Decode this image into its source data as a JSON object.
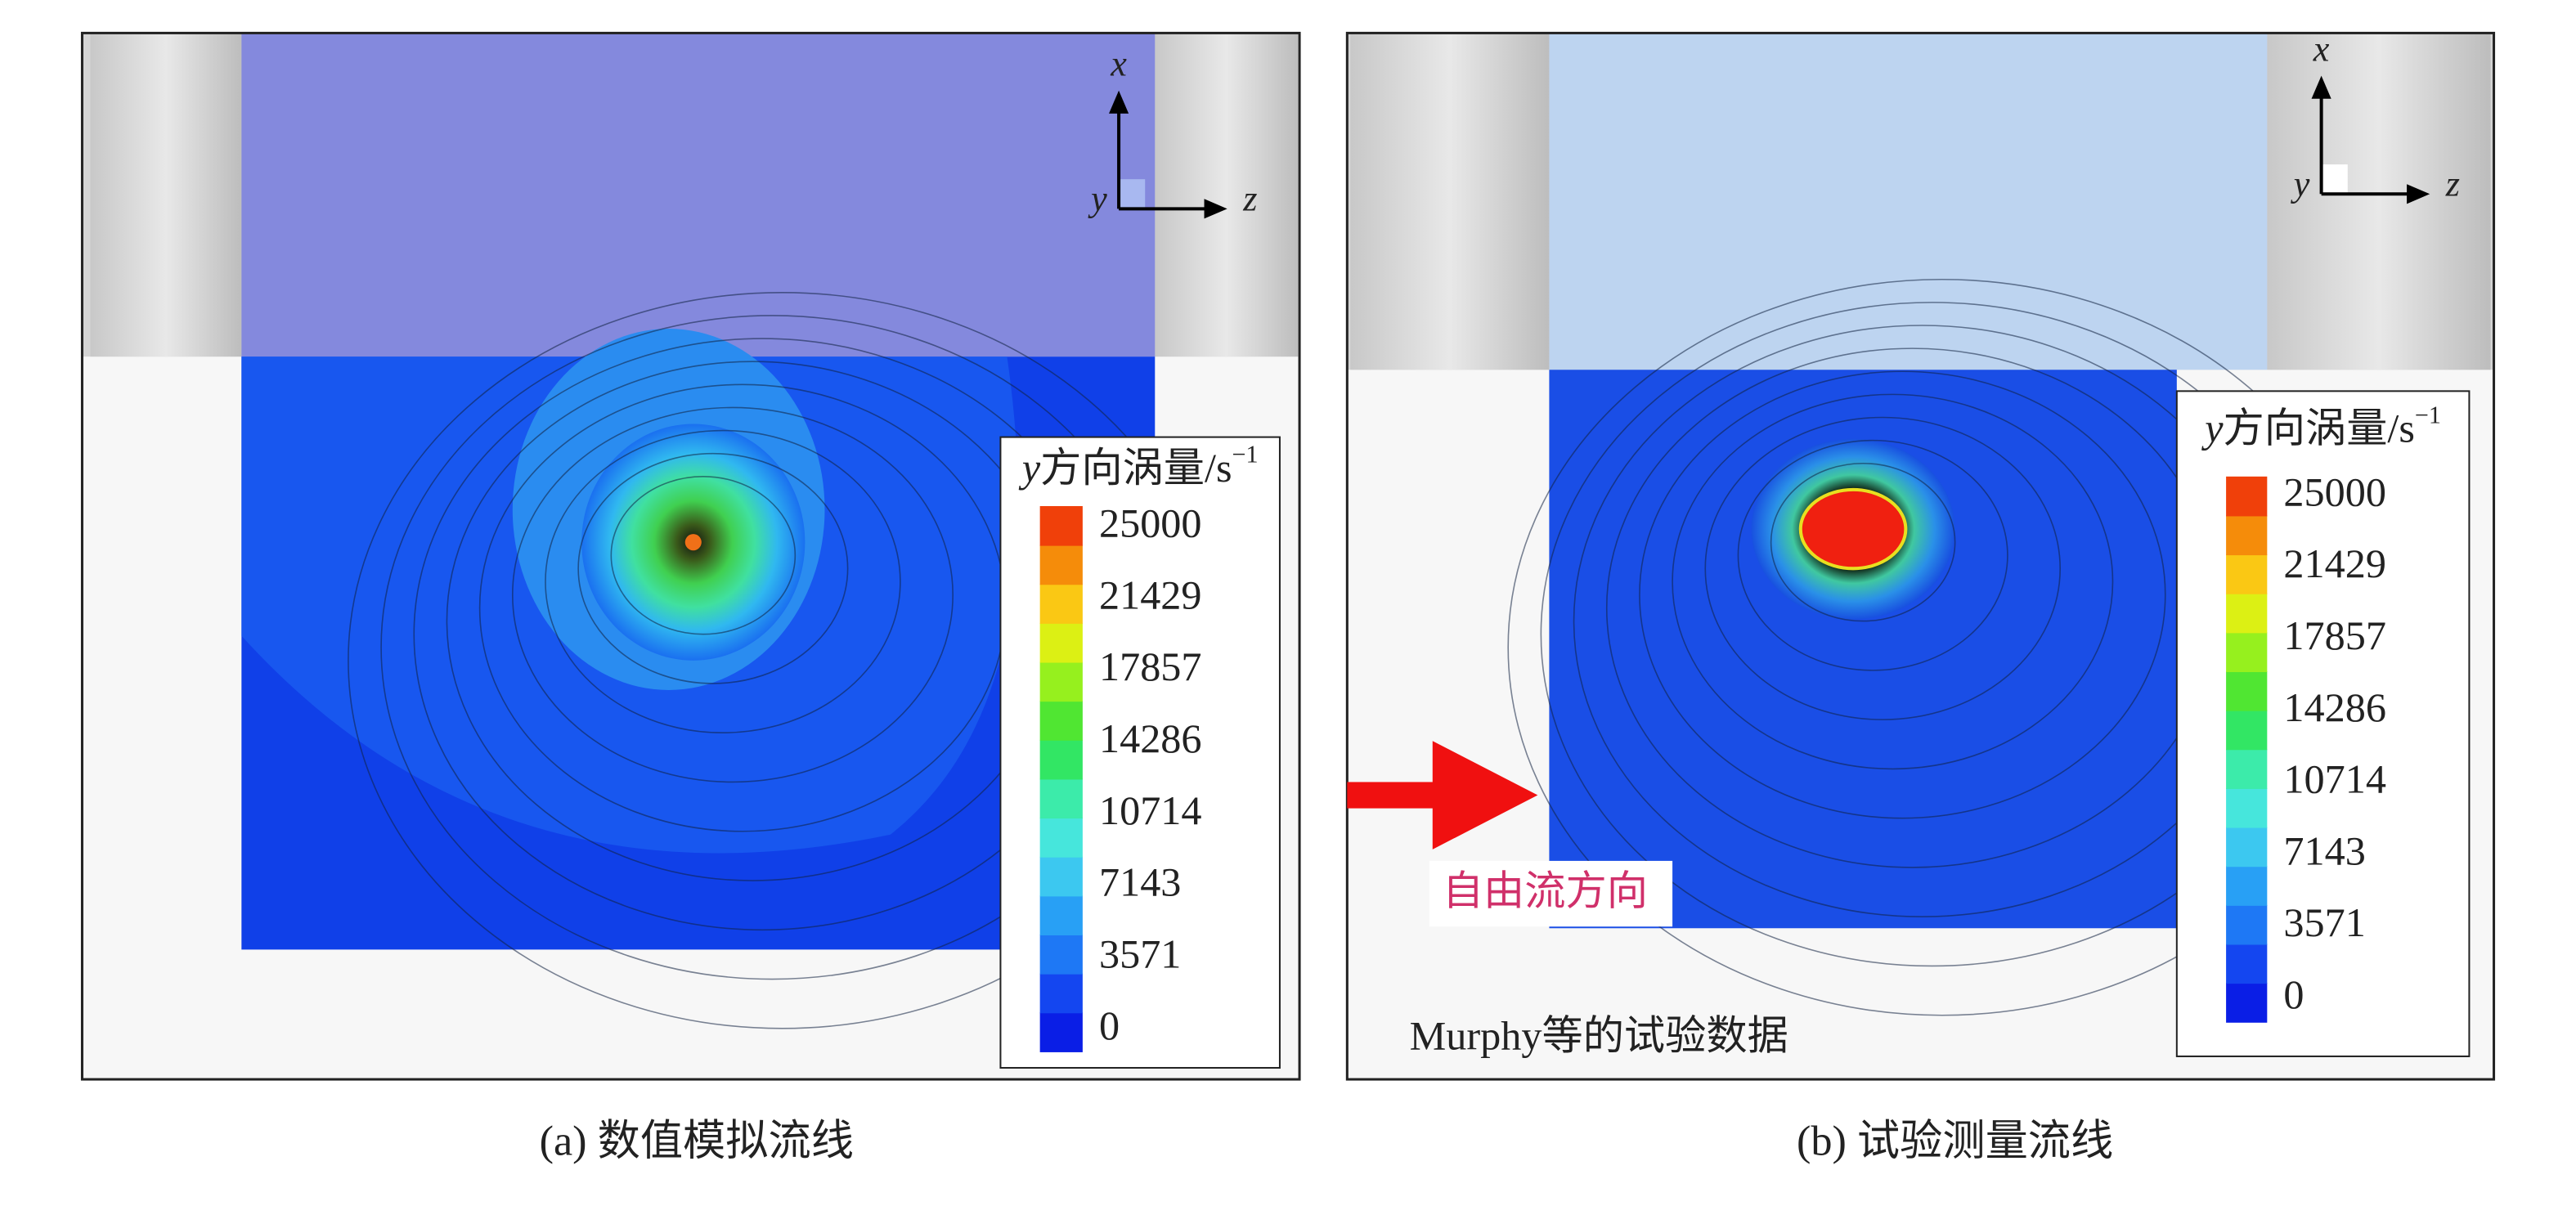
{
  "panels": [
    {
      "caption": "(a) 数值模拟流线",
      "axes": {
        "x": "x",
        "y": "y",
        "z": "z"
      },
      "legend": {
        "title_var": "y",
        "title_text": "方向涡量/s",
        "title_sup": "−1",
        "ticks": [
          25000,
          21429,
          17857,
          14286,
          10714,
          7143,
          3571,
          0
        ]
      }
    },
    {
      "caption": "(b) 试验测量流线",
      "axes": {
        "x": "x",
        "y": "y",
        "z": "z"
      },
      "legend": {
        "title_var": "y",
        "title_text": "方向涡量/s",
        "title_sup": "−1",
        "ticks": [
          25000,
          21429,
          17857,
          14286,
          10714,
          7143,
          3571,
          0
        ]
      },
      "annotation": "自由流方向",
      "note": "Murphy等的试验数据"
    }
  ]
}
